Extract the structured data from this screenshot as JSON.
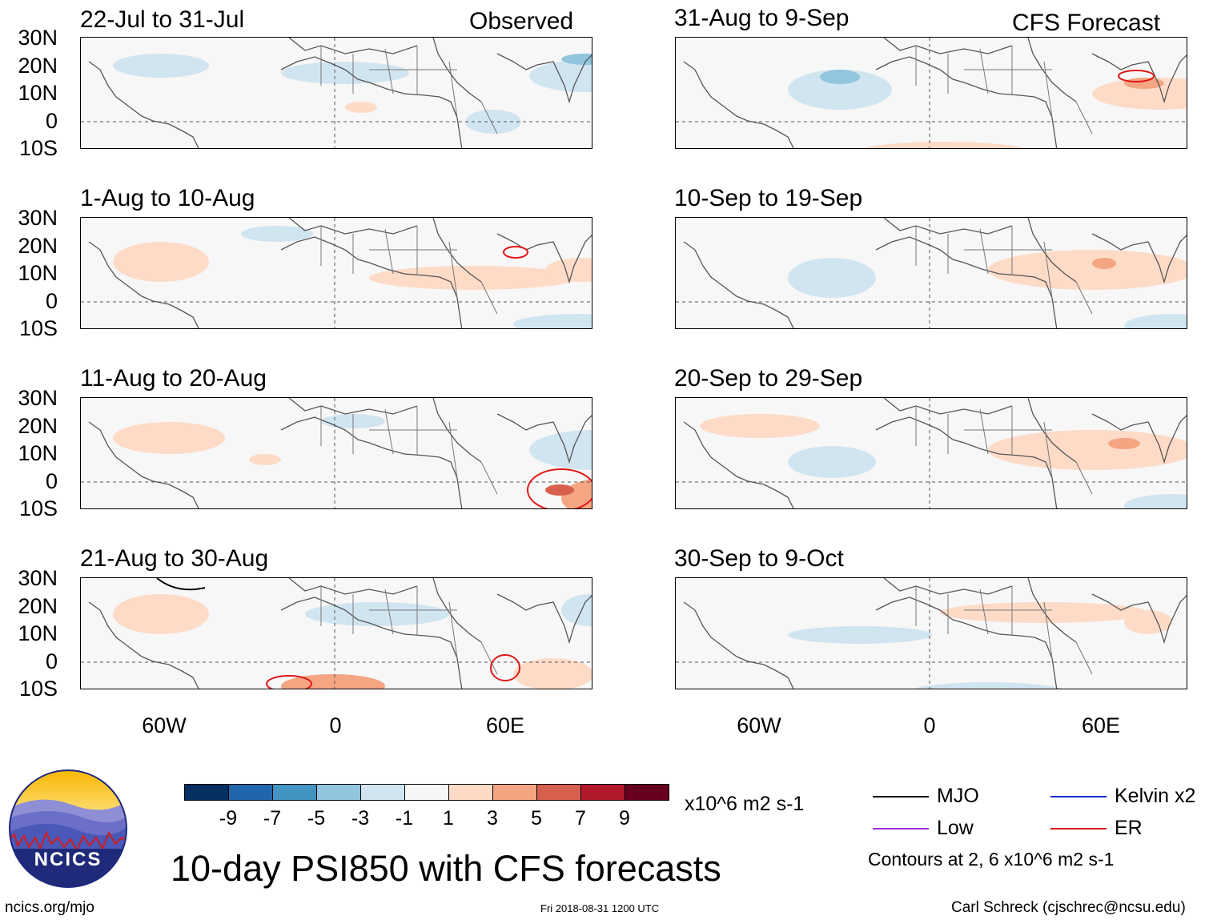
{
  "panels": [
    {
      "id": "p1",
      "title": "22-Jul to 31-Jul",
      "label": "Observed"
    },
    {
      "id": "p2",
      "title": "1-Aug to 10-Aug"
    },
    {
      "id": "p3",
      "title": "11-Aug to 20-Aug"
    },
    {
      "id": "p4",
      "title": "21-Aug to 30-Aug"
    },
    {
      "id": "p5",
      "title": "31-Aug to 9-Sep",
      "label": "CFS Forecast"
    },
    {
      "id": "p6",
      "title": "10-Sep to 19-Sep"
    },
    {
      "id": "p7",
      "title": "20-Sep to 29-Sep"
    },
    {
      "id": "p8",
      "title": "30-Sep to 9-Oct"
    }
  ],
  "lat_labels": [
    "30N",
    "20N",
    "10N",
    "0",
    "10S"
  ],
  "lon_labels": [
    "60W",
    "0",
    "60E"
  ],
  "colorbar": {
    "colors": [
      "#053061",
      "#2166ac",
      "#4393c3",
      "#92c5de",
      "#d1e5f0",
      "#f7f7f7",
      "#fddbc7",
      "#f4a582",
      "#d6604d",
      "#b2182b",
      "#67001f"
    ],
    "ticks": [
      "-9",
      "-7",
      "-5",
      "-3",
      "-1",
      "1",
      "3",
      "5",
      "7",
      "9"
    ],
    "units": "x10^6 m2 s-1"
  },
  "legend": {
    "items": [
      {
        "label": "MJO",
        "color": "#000000"
      },
      {
        "label": "Kelvin x2",
        "color": "#1f2fd6"
      },
      {
        "label": "Low",
        "color": "#a030e0"
      },
      {
        "label": "ER",
        "color": "#e01818"
      }
    ],
    "contours_note": "Contours at 2, 6 x10^6 m2 s-1"
  },
  "logo_text": "NCICS",
  "main_title": "10-day PSI850 with CFS forecasts",
  "footer": {
    "left": "ncics.org/mjo",
    "center": "Fri 2018-08-31 1200 UTC",
    "right": "Carl Schreck (cjschrec@ncsu.edu)"
  }
}
